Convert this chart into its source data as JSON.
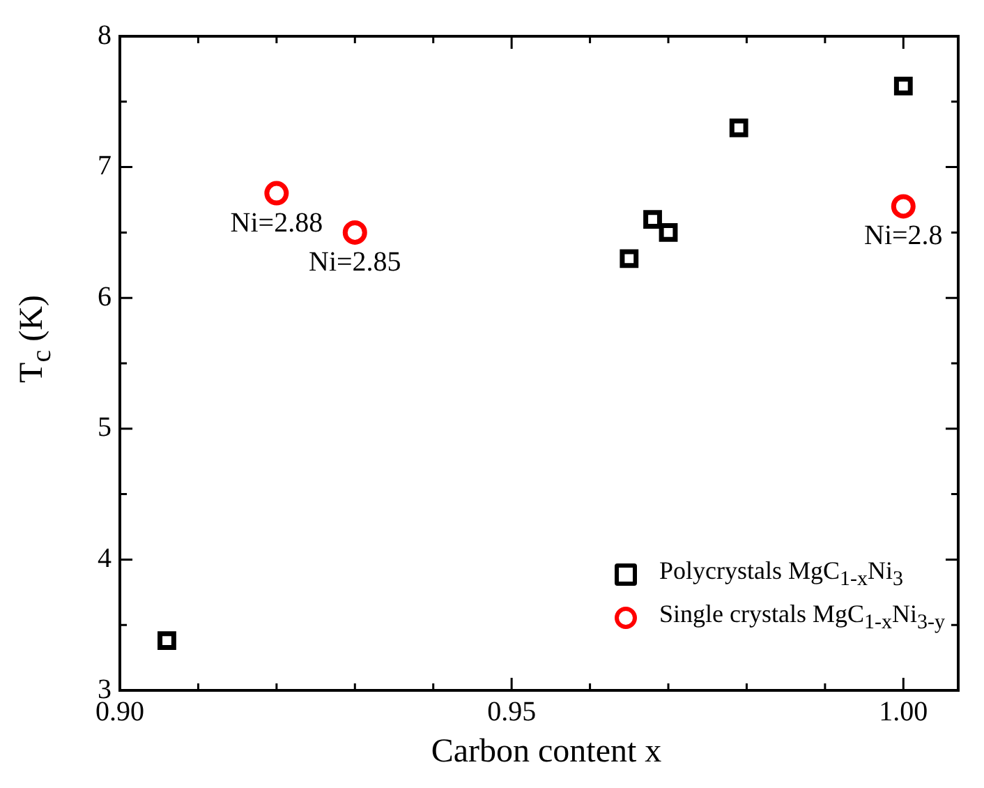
{
  "chart_data": {
    "type": "scatter",
    "xlabel": "Carbon content x",
    "ylabel": "T$_{c}$ (K)",
    "xlim": [
      0.9,
      1.007
    ],
    "ylim": [
      3,
      8
    ],
    "xticks": [
      {
        "value": 0.9,
        "label": "0.90"
      },
      {
        "value": 0.91,
        "label": null
      },
      {
        "value": 0.92,
        "label": null
      },
      {
        "value": 0.93,
        "label": null
      },
      {
        "value": 0.94,
        "label": null
      },
      0.95,
      {
        "value": 0.96,
        "label": null
      },
      {
        "value": 0.97,
        "label": null
      },
      {
        "value": 0.98,
        "label": null
      },
      {
        "value": 0.99,
        "label": null
      },
      {
        "value": 1.0,
        "label": "1.00"
      }
    ],
    "yticks": [
      3,
      {
        "value": 3.5,
        "label": null
      },
      4,
      {
        "value": 4.5,
        "label": null
      },
      5,
      {
        "value": 5.5,
        "label": null
      },
      6,
      {
        "value": 6.5,
        "label": null
      },
      7,
      {
        "value": 7.5,
        "label": null
      },
      8
    ],
    "legend": "bottom right",
    "series": [
      {
        "name": "Polycrystals MgC$_{1-x}$Ni$_{3}$",
        "color": "#000000",
        "marker": "square",
        "x": [
          0.906,
          0.965,
          0.968,
          0.97,
          0.979,
          1.0
        ],
        "values": [
          3.38,
          6.3,
          6.6,
          6.5,
          7.3,
          7.62
        ]
      },
      {
        "name": "Single crystals MgC$_{1-x}$Ni$_{3-y}$",
        "color": "#ff0000",
        "marker": "circle",
        "x": [
          0.92,
          0.93,
          1.0
        ],
        "values": [
          6.8,
          6.5,
          6.7
        ]
      }
    ],
    "annotations": [
      {
        "text": "Ni=2.88",
        "x": 0.92,
        "y": 6.8
      },
      {
        "text": "Ni=2.85",
        "x": 0.93,
        "y": 6.5
      },
      {
        "text": "Ni=2.8",
        "x": 1.0,
        "y": 6.7
      }
    ]
  }
}
